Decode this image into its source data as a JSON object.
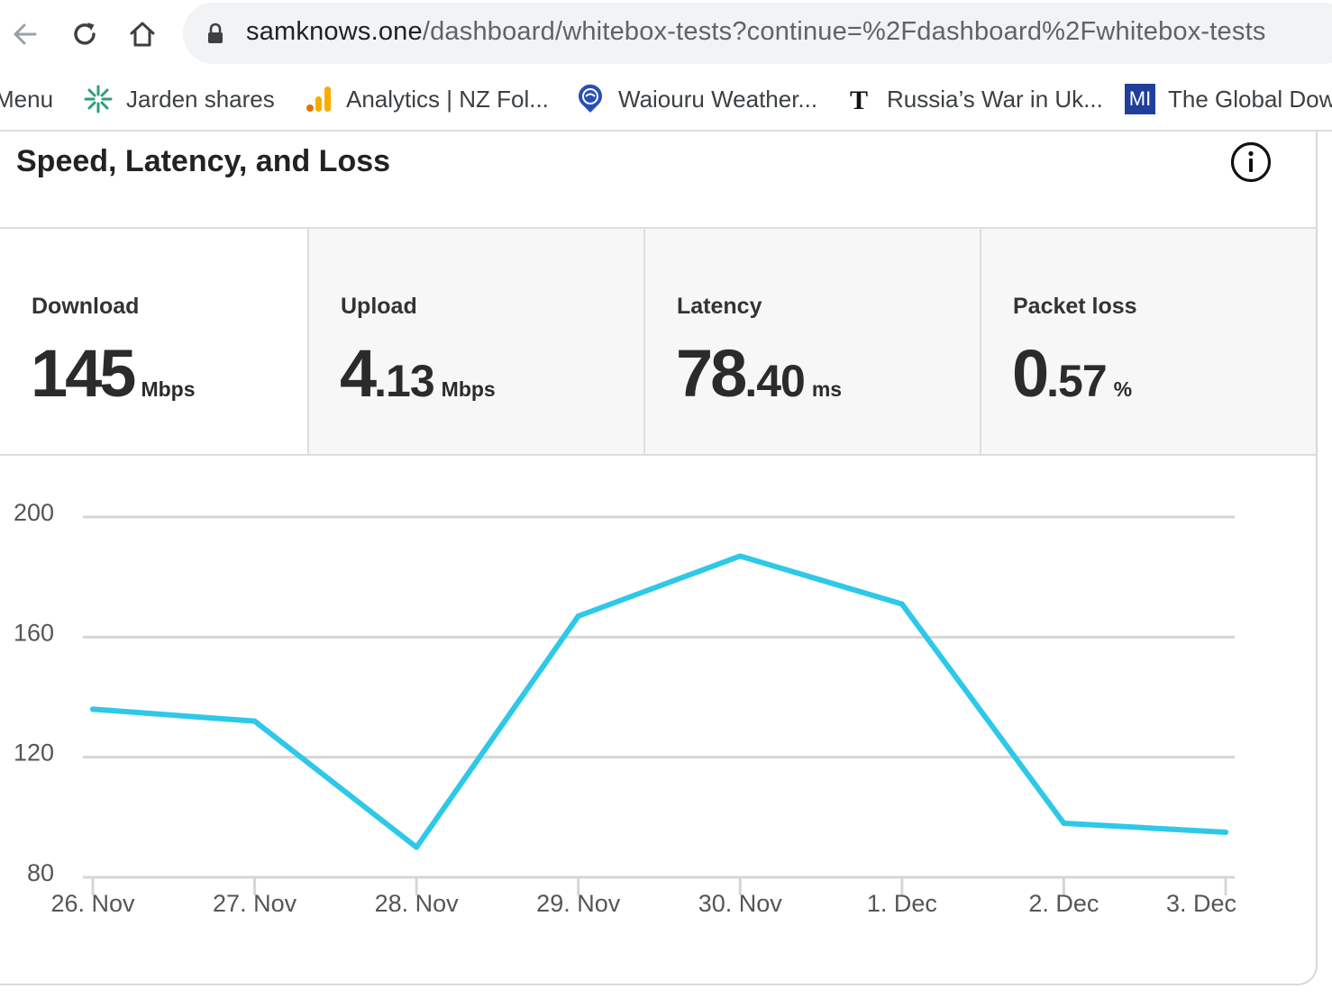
{
  "browser": {
    "url_host": "samknows.one",
    "url_path": "/dashboard/whitebox-tests?continue=%2Fdashboard%2Fwhitebox-tests",
    "icons": [
      "back-arrow-icon",
      "reload-icon",
      "home-icon",
      "lock-icon"
    ]
  },
  "bookmarks": {
    "items": [
      {
        "label": "Menu"
      },
      {
        "label": "Jarden shares",
        "icon": "jarden-logo-icon"
      },
      {
        "label": "Analytics | NZ Fol...",
        "icon": "analytics-icon"
      },
      {
        "label": "Waiouru Weather...",
        "icon": "weather-icon"
      },
      {
        "label": "Russia’s War in Uk...",
        "icon": "nyt-icon"
      },
      {
        "label": "The Global Dow",
        "icon": "mi-icon",
        "icon_text": "MI"
      }
    ]
  },
  "card": {
    "title": "Speed, Latency, and Loss",
    "info_icon": "info-icon"
  },
  "metrics": [
    {
      "label": "Download",
      "int": "145",
      "dec": "",
      "unit": "Mbps"
    },
    {
      "label": "Upload",
      "int": "4",
      "dec": ".13",
      "unit": "Mbps"
    },
    {
      "label": "Latency",
      "int": "78",
      "dec": ".40",
      "unit": "ms"
    },
    {
      "label": "Packet loss",
      "int": "0",
      "dec": ".57",
      "unit": "%"
    }
  ],
  "chart_data": {
    "type": "line",
    "categories": [
      "26. Nov",
      "27. Nov",
      "28. Nov",
      "29. Nov",
      "30. Nov",
      "1. Dec",
      "2. Dec",
      "3. Dec"
    ],
    "values": [
      136,
      132,
      90,
      167,
      187,
      171,
      98,
      95
    ],
    "yticks": [
      200,
      160,
      120,
      80
    ],
    "ylim": [
      80,
      200
    ],
    "grid": true,
    "color": "#2ec8e8"
  }
}
